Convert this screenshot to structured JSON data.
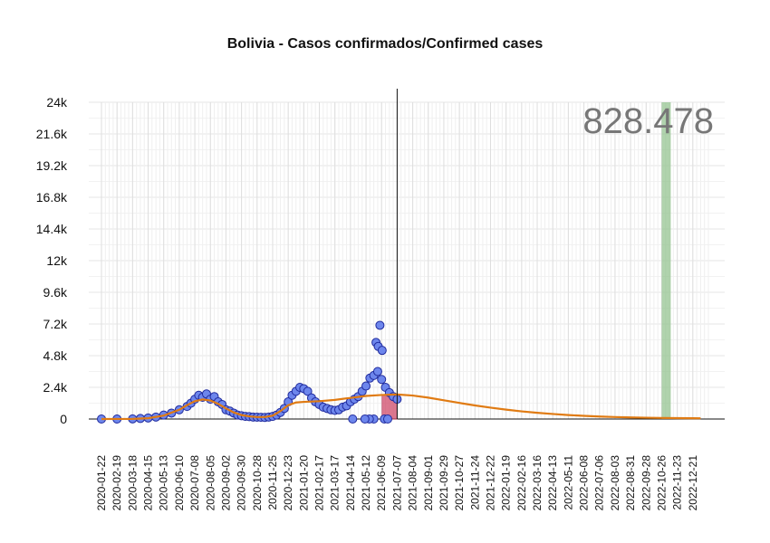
{
  "chart_data": {
    "type": "line",
    "title": "Bolivia - Casos confirmados/Confirmed cases",
    "xlabel": "",
    "ylabel": "",
    "ylim": [
      0,
      24000
    ],
    "yticks": [
      0,
      2400,
      4800,
      7200,
      9600,
      12000,
      14400,
      16800,
      19200,
      21600,
      24000
    ],
    "ytick_labels": [
      "0",
      "2.4k",
      "4.8k",
      "7.2k",
      "9.6k",
      "12k",
      "14.4k",
      "16.8k",
      "19.2k",
      "21.6k",
      "24k"
    ],
    "xlim": [
      "2020-01-22",
      "2023-01-18"
    ],
    "xtick_labels": [
      "2020-01-22",
      "2020-02-19",
      "2020-03-18",
      "2020-04-15",
      "2020-05-13",
      "2020-06-10",
      "2020-07-08",
      "2020-08-05",
      "2020-09-02",
      "2020-09-30",
      "2020-10-28",
      "2020-11-25",
      "2020-12-23",
      "2021-01-20",
      "2021-02-17",
      "2021-03-17",
      "2021-04-14",
      "2021-05-12",
      "2021-06-09",
      "2021-07-07",
      "2021-08-04",
      "2021-09-01",
      "2021-09-29",
      "2021-10-27",
      "2021-11-24",
      "2021-12-22",
      "2022-01-19",
      "2022-02-16",
      "2022-03-16",
      "2022-04-13",
      "2022-05-11",
      "2022-06-08",
      "2022-07-06",
      "2022-08-03",
      "2022-08-31",
      "2022-09-28",
      "2022-10-26",
      "2022-11-23",
      "2022-12-21"
    ],
    "grid": true,
    "annotation_total": "828.478",
    "current_date": "2021-07-07",
    "highlight_window": [
      "2021-06-10",
      "2021-07-07"
    ],
    "highlight_range": [
      0,
      1800
    ],
    "peak_band": [
      "2022-10-26",
      "2022-11-02"
    ],
    "series": [
      {
        "kind": "observed",
        "color": "#1f2a9e",
        "points": [
          [
            "2020-01-22",
            0
          ],
          [
            "2020-02-19",
            0
          ],
          [
            "2020-03-18",
            10
          ],
          [
            "2020-04-01",
            40
          ],
          [
            "2020-04-15",
            80
          ],
          [
            "2020-04-29",
            150
          ],
          [
            "2020-05-13",
            300
          ],
          [
            "2020-05-27",
            450
          ],
          [
            "2020-06-10",
            700
          ],
          [
            "2020-06-24",
            950
          ],
          [
            "2020-07-01",
            1200
          ],
          [
            "2020-07-08",
            1500
          ],
          [
            "2020-07-15",
            1800
          ],
          [
            "2020-07-22",
            1650
          ],
          [
            "2020-07-29",
            1900
          ],
          [
            "2020-08-05",
            1500
          ],
          [
            "2020-08-12",
            1700
          ],
          [
            "2020-08-19",
            1300
          ],
          [
            "2020-08-26",
            1100
          ],
          [
            "2020-09-02",
            700
          ],
          [
            "2020-09-09",
            600
          ],
          [
            "2020-09-16",
            450
          ],
          [
            "2020-09-23",
            300
          ],
          [
            "2020-09-30",
            250
          ],
          [
            "2020-10-07",
            200
          ],
          [
            "2020-10-14",
            180
          ],
          [
            "2020-10-21",
            150
          ],
          [
            "2020-10-28",
            140
          ],
          [
            "2020-11-04",
            130
          ],
          [
            "2020-11-11",
            120
          ],
          [
            "2020-11-18",
            150
          ],
          [
            "2020-11-25",
            200
          ],
          [
            "2020-12-02",
            300
          ],
          [
            "2020-12-09",
            500
          ],
          [
            "2020-12-16",
            800
          ],
          [
            "2020-12-23",
            1300
          ],
          [
            "2020-12-30",
            1800
          ],
          [
            "2021-01-06",
            2100
          ],
          [
            "2021-01-13",
            2400
          ],
          [
            "2021-01-20",
            2300
          ],
          [
            "2021-01-27",
            2100
          ],
          [
            "2021-02-03",
            1600
          ],
          [
            "2021-02-10",
            1300
          ],
          [
            "2021-02-17",
            1100
          ],
          [
            "2021-02-24",
            900
          ],
          [
            "2021-03-03",
            800
          ],
          [
            "2021-03-10",
            700
          ],
          [
            "2021-03-17",
            650
          ],
          [
            "2021-03-24",
            700
          ],
          [
            "2021-03-31",
            900
          ],
          [
            "2021-04-07",
            1000
          ],
          [
            "2021-04-14",
            1300
          ],
          [
            "2021-04-21",
            1500
          ],
          [
            "2021-04-28",
            1700
          ],
          [
            "2021-05-05",
            2100
          ],
          [
            "2021-05-12",
            2500
          ],
          [
            "2021-05-19",
            3100
          ],
          [
            "2021-05-26",
            3300
          ],
          [
            "2021-06-02",
            3600
          ],
          [
            "2021-06-09",
            3000
          ],
          [
            "2021-06-16",
            2400
          ],
          [
            "2021-06-23",
            2000
          ],
          [
            "2021-06-30",
            1700
          ],
          [
            "2021-07-07",
            1500
          ]
        ],
        "outliers": [
          [
            "2021-06-06",
            7100
          ],
          [
            "2021-05-30",
            5800
          ],
          [
            "2021-06-03",
            5500
          ],
          [
            "2021-06-10",
            5200
          ],
          [
            "2021-05-26",
            0
          ],
          [
            "2021-05-18",
            0
          ],
          [
            "2021-05-10",
            0
          ],
          [
            "2021-04-18",
            0
          ],
          [
            "2021-06-14",
            0
          ],
          [
            "2021-06-20",
            0
          ]
        ]
      },
      {
        "kind": "fitted",
        "color": "#e07b13",
        "points": [
          [
            "2020-01-22",
            0
          ],
          [
            "2020-03-18",
            10
          ],
          [
            "2020-04-15",
            60
          ],
          [
            "2020-05-13",
            260
          ],
          [
            "2020-06-10",
            700
          ],
          [
            "2020-06-24",
            1050
          ],
          [
            "2020-07-08",
            1350
          ],
          [
            "2020-07-22",
            1480
          ],
          [
            "2020-08-05",
            1400
          ],
          [
            "2020-08-19",
            1150
          ],
          [
            "2020-09-02",
            800
          ],
          [
            "2020-09-16",
            500
          ],
          [
            "2020-09-30",
            300
          ],
          [
            "2020-10-14",
            200
          ],
          [
            "2020-10-28",
            150
          ],
          [
            "2020-11-11",
            150
          ],
          [
            "2020-11-25",
            250
          ],
          [
            "2020-12-09",
            600
          ],
          [
            "2020-12-23",
            1050
          ],
          [
            "2021-01-06",
            1250
          ],
          [
            "2021-01-20",
            1300
          ],
          [
            "2021-02-17",
            1350
          ],
          [
            "2021-03-17",
            1450
          ],
          [
            "2021-04-14",
            1600
          ],
          [
            "2021-05-12",
            1750
          ],
          [
            "2021-06-09",
            1820
          ],
          [
            "2021-07-07",
            1860
          ],
          [
            "2021-08-04",
            1780
          ],
          [
            "2021-09-01",
            1620
          ],
          [
            "2021-09-29",
            1420
          ],
          [
            "2021-10-27",
            1220
          ],
          [
            "2021-11-24",
            1030
          ],
          [
            "2021-12-22",
            860
          ],
          [
            "2022-01-19",
            710
          ],
          [
            "2022-02-16",
            580
          ],
          [
            "2022-03-16",
            470
          ],
          [
            "2022-04-13",
            380
          ],
          [
            "2022-05-11",
            300
          ],
          [
            "2022-06-08",
            240
          ],
          [
            "2022-07-06",
            190
          ],
          [
            "2022-08-03",
            150
          ],
          [
            "2022-08-31",
            120
          ],
          [
            "2022-09-28",
            100
          ],
          [
            "2022-10-26",
            80
          ],
          [
            "2022-11-23",
            70
          ],
          [
            "2022-12-21",
            60
          ],
          [
            "2023-01-04",
            55
          ]
        ]
      }
    ]
  }
}
